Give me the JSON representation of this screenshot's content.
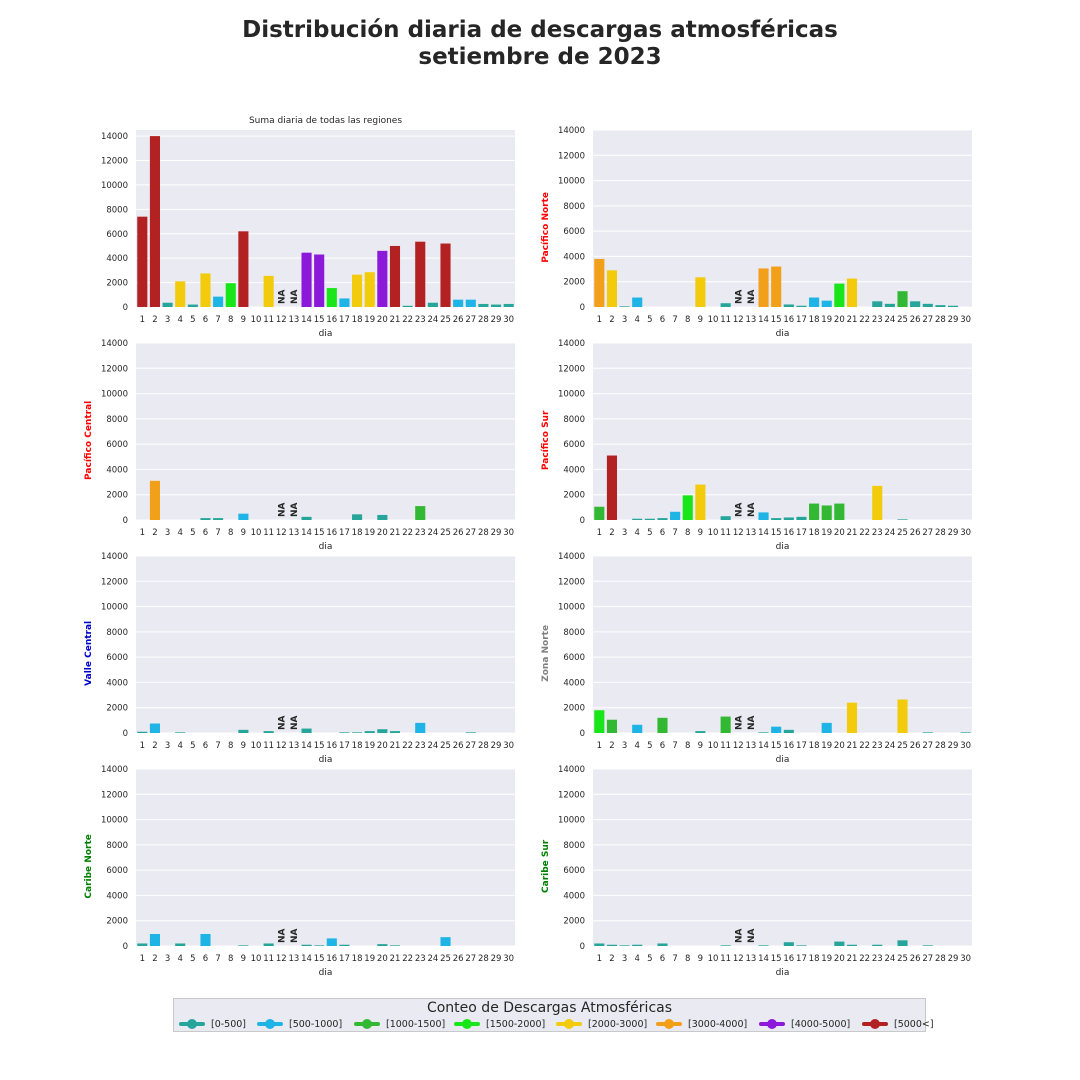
{
  "figure": {
    "title_line1": "Distribución diaria de descargas atmosféricas",
    "title_line2": "setiembre de 2023"
  },
  "legend": {
    "title": "Conteo de Descargas Atmosféricas",
    "items": [
      {
        "label": "[0-500]",
        "color": "#26a69a"
      },
      {
        "label": "[500-1000]",
        "color": "#1eb4e6"
      },
      {
        "label": "[1000-1500]",
        "color": "#33b833"
      },
      {
        "label": "[1500-2000]",
        "color": "#19e619"
      },
      {
        "label": "[2000-3000]",
        "color": "#f2cc0c"
      },
      {
        "label": "[3000-4000]",
        "color": "#f29f19"
      },
      {
        "label": "[4000-5000]",
        "color": "#8c19d9"
      },
      {
        "label": "[5000<]",
        "color": "#b22222"
      }
    ]
  },
  "chart_data": [
    {
      "type": "bar",
      "title": "Suma diaria de todas las regiones",
      "ylabel": "",
      "ylabel_color": "#000000",
      "xlabel": "dia",
      "ylim": [
        0,
        14500
      ],
      "yticks": [
        0,
        2000,
        4000,
        6000,
        8000,
        10000,
        12000,
        14000
      ],
      "categories": [
        "1",
        "2",
        "3",
        "4",
        "5",
        "6",
        "7",
        "8",
        "9",
        "10",
        "11",
        "12",
        "13",
        "14",
        "15",
        "16",
        "17",
        "18",
        "19",
        "20",
        "21",
        "22",
        "23",
        "24",
        "25",
        "26",
        "27",
        "28",
        "29",
        "30"
      ],
      "values": [
        7400,
        14000,
        350,
        2100,
        200,
        2750,
        850,
        1950,
        6200,
        0,
        2550,
        null,
        null,
        4450,
        4300,
        1550,
        700,
        2650,
        2850,
        4600,
        5000,
        100,
        5350,
        350,
        5200,
        600,
        600,
        250,
        200,
        250
      ],
      "missing_label": "NA"
    },
    {
      "type": "bar",
      "title": "",
      "ylabel": "Pacífico Norte",
      "ylabel_color": "#ff0000",
      "xlabel": "dia",
      "ylim": [
        0,
        14000
      ],
      "yticks": [
        0,
        2000,
        4000,
        6000,
        8000,
        10000,
        12000,
        14000
      ],
      "categories": [
        "1",
        "2",
        "3",
        "4",
        "5",
        "6",
        "7",
        "8",
        "9",
        "10",
        "11",
        "12",
        "13",
        "14",
        "15",
        "16",
        "17",
        "18",
        "19",
        "20",
        "21",
        "22",
        "23",
        "24",
        "25",
        "26",
        "27",
        "28",
        "29",
        "30"
      ],
      "values": [
        3800,
        2900,
        50,
        750,
        0,
        0,
        0,
        0,
        2350,
        0,
        300,
        null,
        null,
        3050,
        3200,
        200,
        100,
        750,
        500,
        1850,
        2250,
        0,
        450,
        250,
        1250,
        450,
        250,
        150,
        100,
        0
      ],
      "missing_label": "NA"
    },
    {
      "type": "bar",
      "title": "",
      "ylabel": "Pacífico Central",
      "ylabel_color": "#ff0000",
      "xlabel": "dia",
      "ylim": [
        0,
        14000
      ],
      "yticks": [
        0,
        2000,
        4000,
        6000,
        8000,
        10000,
        12000,
        14000
      ],
      "categories": [
        "1",
        "2",
        "3",
        "4",
        "5",
        "6",
        "7",
        "8",
        "9",
        "10",
        "11",
        "12",
        "13",
        "14",
        "15",
        "16",
        "17",
        "18",
        "19",
        "20",
        "21",
        "22",
        "23",
        "24",
        "25",
        "26",
        "27",
        "28",
        "29",
        "30"
      ],
      "values": [
        0,
        3100,
        0,
        0,
        0,
        150,
        150,
        0,
        500,
        0,
        0,
        null,
        null,
        250,
        0,
        0,
        0,
        450,
        0,
        400,
        0,
        0,
        1100,
        0,
        0,
        0,
        0,
        0,
        0,
        0
      ],
      "missing_label": "NA"
    },
    {
      "type": "bar",
      "title": "",
      "ylabel": "Pacífico Sur",
      "ylabel_color": "#ff0000",
      "xlabel": "dia",
      "ylim": [
        0,
        14000
      ],
      "yticks": [
        0,
        2000,
        4000,
        6000,
        8000,
        10000,
        12000,
        14000
      ],
      "categories": [
        "1",
        "2",
        "3",
        "4",
        "5",
        "6",
        "7",
        "8",
        "9",
        "10",
        "11",
        "12",
        "13",
        "14",
        "15",
        "16",
        "17",
        "18",
        "19",
        "20",
        "21",
        "22",
        "23",
        "24",
        "25",
        "26",
        "27",
        "28",
        "29",
        "30"
      ],
      "values": [
        1050,
        5100,
        0,
        100,
        100,
        150,
        650,
        1950,
        2800,
        0,
        300,
        null,
        null,
        600,
        150,
        200,
        250,
        1300,
        1150,
        1300,
        0,
        0,
        2700,
        0,
        50,
        0,
        0,
        0,
        0,
        0
      ],
      "missing_label": "NA"
    },
    {
      "type": "bar",
      "title": "",
      "ylabel": "Valle Central",
      "ylabel_color": "#0000cc",
      "xlabel": "dia",
      "ylim": [
        0,
        14000
      ],
      "yticks": [
        0,
        2000,
        4000,
        6000,
        8000,
        10000,
        12000,
        14000
      ],
      "categories": [
        "1",
        "2",
        "3",
        "4",
        "5",
        "6",
        "7",
        "8",
        "9",
        "10",
        "11",
        "12",
        "13",
        "14",
        "15",
        "16",
        "17",
        "18",
        "19",
        "20",
        "21",
        "22",
        "23",
        "24",
        "25",
        "26",
        "27",
        "28",
        "29",
        "30"
      ],
      "values": [
        100,
        750,
        0,
        50,
        0,
        0,
        0,
        0,
        250,
        0,
        150,
        null,
        null,
        350,
        0,
        0,
        50,
        50,
        150,
        300,
        150,
        0,
        800,
        0,
        0,
        0,
        50,
        0,
        0,
        0
      ],
      "missing_label": "NA"
    },
    {
      "type": "bar",
      "title": "",
      "ylabel": "Zona Norte",
      "ylabel_color": "#808080",
      "xlabel": "dia",
      "ylim": [
        0,
        14000
      ],
      "yticks": [
        0,
        2000,
        4000,
        6000,
        8000,
        10000,
        12000,
        14000
      ],
      "categories": [
        "1",
        "2",
        "3",
        "4",
        "5",
        "6",
        "7",
        "8",
        "9",
        "10",
        "11",
        "12",
        "13",
        "14",
        "15",
        "16",
        "17",
        "18",
        "19",
        "20",
        "21",
        "22",
        "23",
        "24",
        "25",
        "26",
        "27",
        "28",
        "29",
        "30"
      ],
      "values": [
        1800,
        1050,
        0,
        650,
        0,
        1200,
        0,
        0,
        150,
        0,
        1300,
        null,
        null,
        50,
        500,
        250,
        0,
        0,
        800,
        0,
        2400,
        0,
        0,
        0,
        2650,
        0,
        50,
        0,
        0,
        50
      ],
      "missing_label": "NA"
    },
    {
      "type": "bar",
      "title": "",
      "ylabel": "Caribe Norte",
      "ylabel_color": "#008000",
      "xlabel": "dia",
      "ylim": [
        0,
        14000
      ],
      "yticks": [
        0,
        2000,
        4000,
        6000,
        8000,
        10000,
        12000,
        14000
      ],
      "categories": [
        "1",
        "2",
        "3",
        "4",
        "5",
        "6",
        "7",
        "8",
        "9",
        "10",
        "11",
        "12",
        "13",
        "14",
        "15",
        "16",
        "17",
        "18",
        "19",
        "20",
        "21",
        "22",
        "23",
        "24",
        "25",
        "26",
        "27",
        "28",
        "29",
        "30"
      ],
      "values": [
        200,
        950,
        0,
        200,
        0,
        950,
        0,
        0,
        50,
        0,
        200,
        null,
        null,
        100,
        50,
        600,
        100,
        0,
        0,
        150,
        50,
        0,
        0,
        0,
        700,
        0,
        0,
        0,
        0,
        0
      ],
      "missing_label": "NA"
    },
    {
      "type": "bar",
      "title": "",
      "ylabel": "Caribe Sur",
      "ylabel_color": "#008000",
      "xlabel": "dia",
      "ylim": [
        0,
        14000
      ],
      "yticks": [
        0,
        2000,
        4000,
        6000,
        8000,
        10000,
        12000,
        14000
      ],
      "categories": [
        "1",
        "2",
        "3",
        "4",
        "5",
        "6",
        "7",
        "8",
        "9",
        "10",
        "11",
        "12",
        "13",
        "14",
        "15",
        "16",
        "17",
        "18",
        "19",
        "20",
        "21",
        "22",
        "23",
        "24",
        "25",
        "26",
        "27",
        "28",
        "29",
        "30"
      ],
      "values": [
        200,
        100,
        50,
        100,
        0,
        200,
        0,
        0,
        0,
        0,
        50,
        null,
        null,
        50,
        0,
        300,
        50,
        0,
        0,
        350,
        100,
        0,
        100,
        0,
        450,
        0,
        50,
        0,
        0,
        0
      ],
      "missing_label": "NA"
    }
  ]
}
